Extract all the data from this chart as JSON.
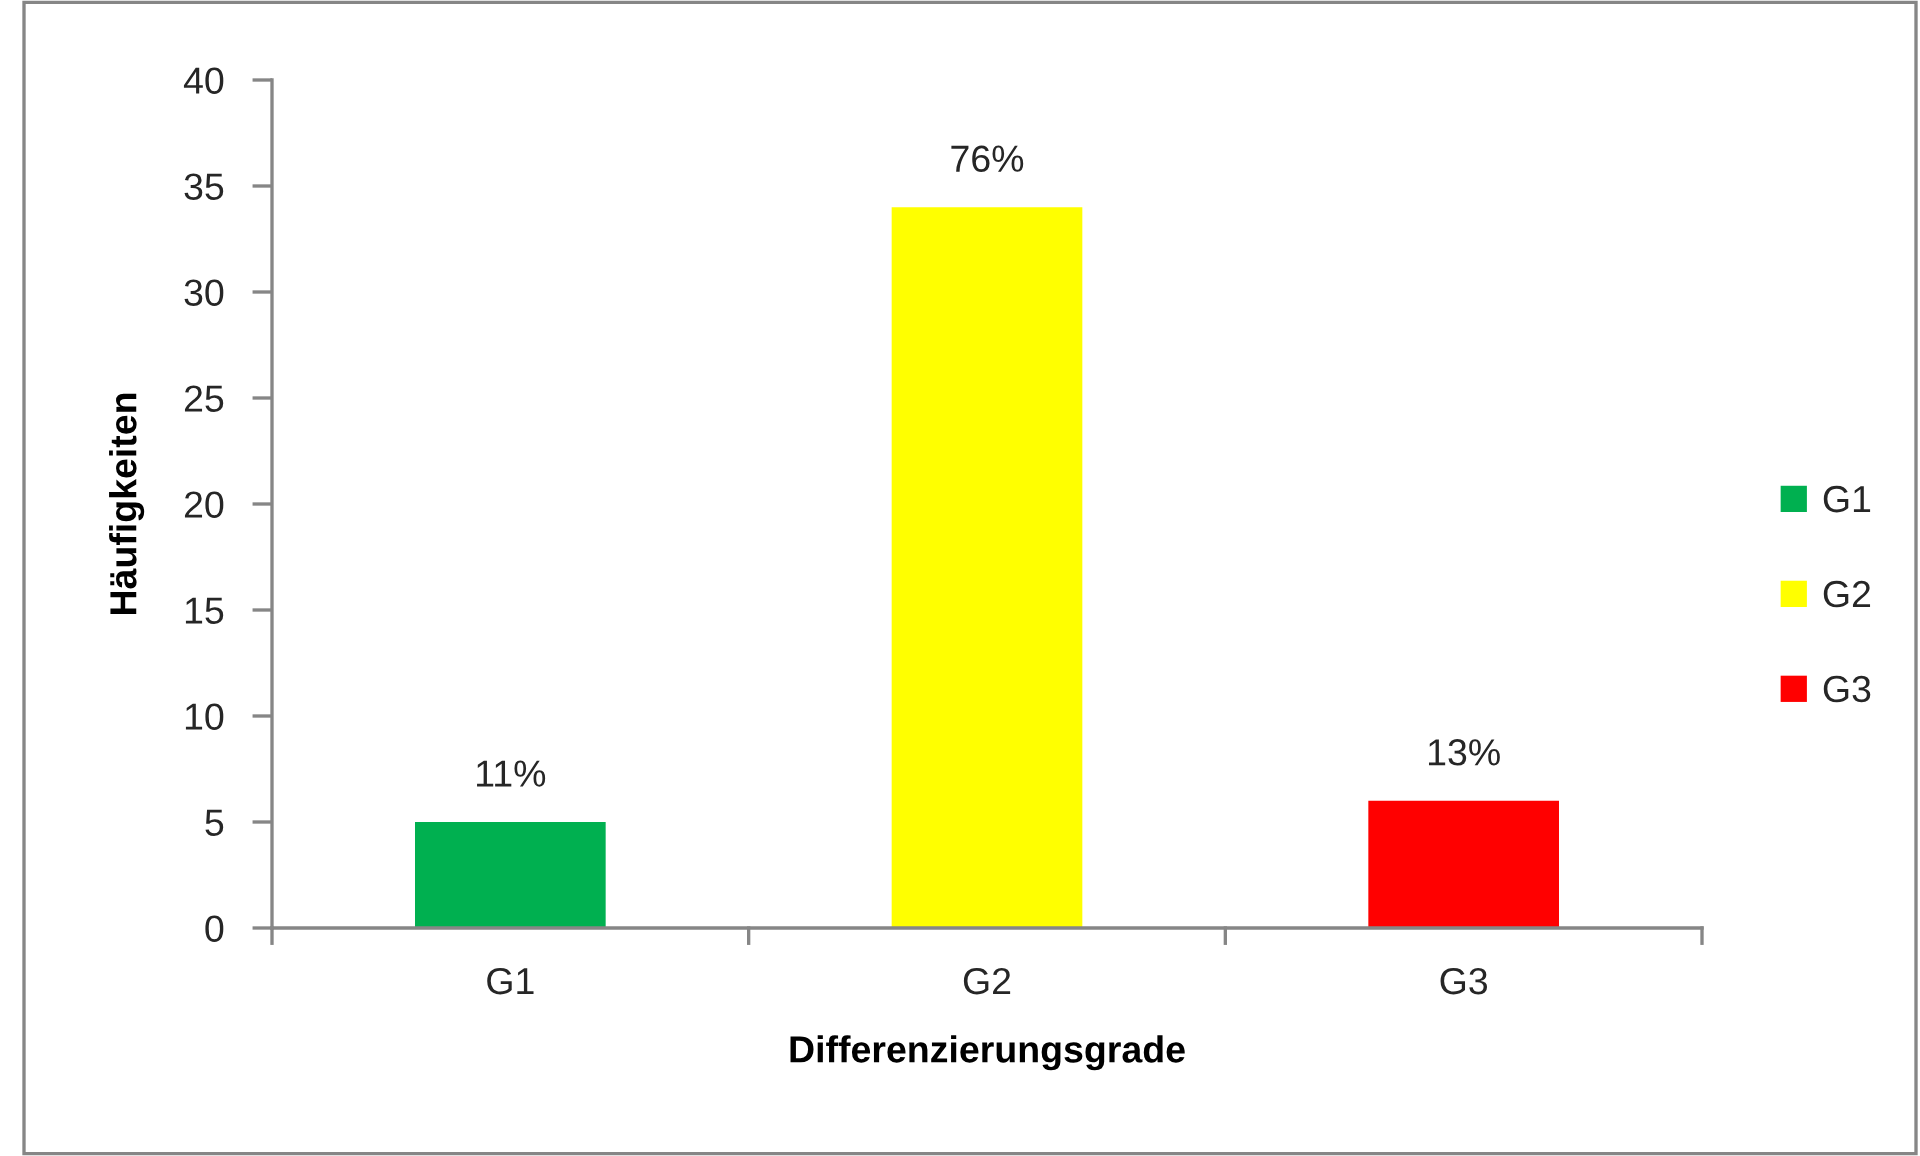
{
  "chart_data": {
    "type": "bar",
    "xlabel": "Differenzierungsgrade",
    "ylabel": "Häufigkeiten",
    "categories": [
      "G1",
      "G2",
      "G3"
    ],
    "stacked": true,
    "series": [
      {
        "name": "G1",
        "color": "#00b050",
        "values": [
          5,
          null,
          null
        ]
      },
      {
        "name": "G2",
        "color": "#ffff00",
        "values": [
          null,
          34,
          null
        ]
      },
      {
        "name": "G3",
        "color": "#ff0000",
        "values": [
          null,
          null,
          6
        ]
      }
    ],
    "annotations": [
      {
        "text": "11%",
        "x": "G1",
        "y": 5
      },
      {
        "text": "76%",
        "x": "G2",
        "y": 34
      },
      {
        "text": "13%",
        "x": "G3",
        "y": 6
      }
    ],
    "ylim": [
      0,
      40
    ],
    "yticks": [
      0,
      5,
      10,
      15,
      20,
      25,
      30,
      35,
      40
    ],
    "grid": false,
    "legend": "right"
  }
}
